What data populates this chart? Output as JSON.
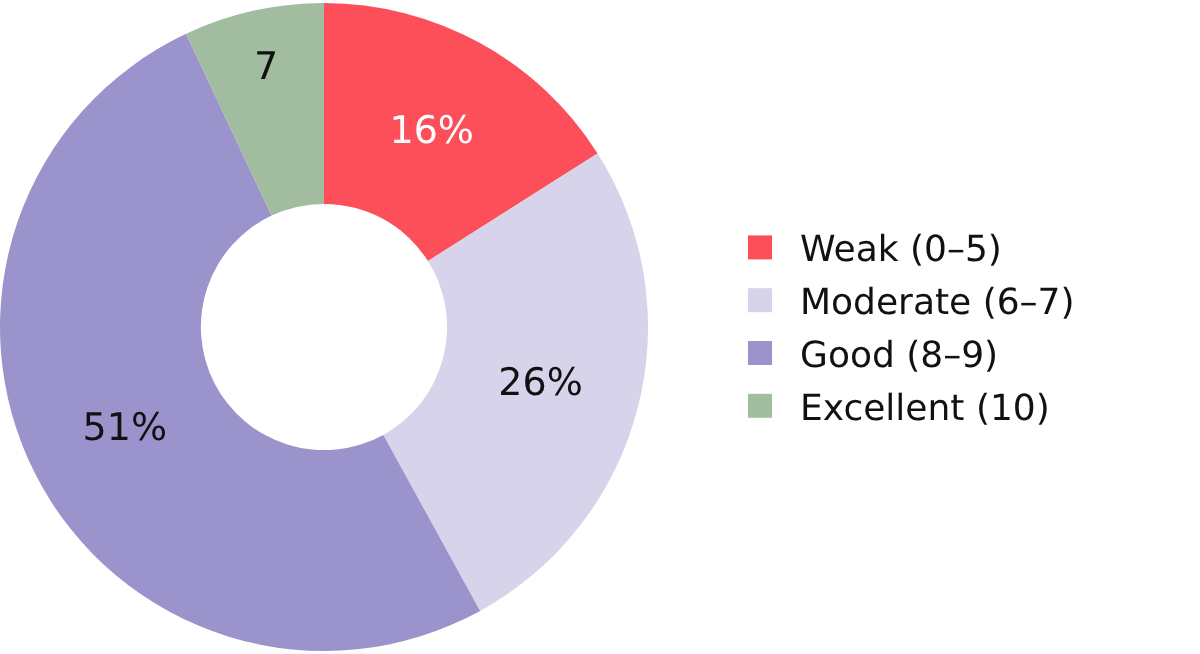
{
  "chart_data": {
    "type": "donut",
    "categories": [
      "Weak (0–5)",
      "Moderate (6–7)",
      "Good (8–9)",
      "Excellent (10)"
    ],
    "values": [
      16,
      26,
      51,
      7
    ],
    "value_labels": [
      "16%",
      "26%",
      "51%",
      "7"
    ],
    "colors": [
      "#fd4f5a",
      "#d6d3eb",
      "#9a93cc",
      "#a2bca0"
    ],
    "legend": "right"
  }
}
